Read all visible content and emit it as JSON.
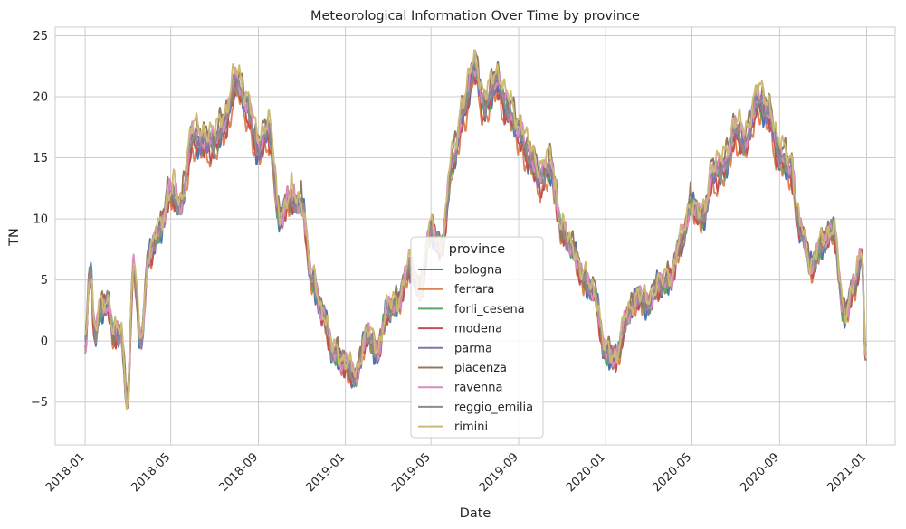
{
  "chart_data": {
    "type": "line",
    "title": "Meteorological Information Over Time by province",
    "xlabel": "Date",
    "ylabel": "TN",
    "x_range": [
      "2017-11-20",
      "2021-02-10"
    ],
    "ylim": [
      -8.5,
      25.7
    ],
    "y_ticks": [
      -5,
      0,
      5,
      10,
      15,
      20,
      25
    ],
    "y_tick_labels": [
      "−5",
      "0",
      "5",
      "10",
      "15",
      "20",
      "25"
    ],
    "x_ticks": [
      "2018-01-01",
      "2018-05-01",
      "2018-09-01",
      "2019-01-01",
      "2019-05-01",
      "2019-09-01",
      "2020-01-01",
      "2020-05-01",
      "2020-09-01",
      "2021-01-01"
    ],
    "x_tick_labels": [
      "2018-01",
      "2018-05",
      "2018-09",
      "2019-01",
      "2019-05",
      "2019-09",
      "2020-01",
      "2020-05",
      "2020-09",
      "2021-01"
    ],
    "grid": true,
    "legend": {
      "title": "province",
      "placement": "center"
    },
    "base_profile": [
      [
        "2018-01-01",
        -0.5
      ],
      [
        "2018-01-08",
        5.5
      ],
      [
        "2018-01-15",
        0.5
      ],
      [
        "2018-01-22",
        2.5
      ],
      [
        "2018-02-01",
        3.0
      ],
      [
        "2018-02-10",
        0.5
      ],
      [
        "2018-02-20",
        0.5
      ],
      [
        "2018-03-01",
        -5.0
      ],
      [
        "2018-03-10",
        6.0
      ],
      [
        "2018-03-20",
        0.0
      ],
      [
        "2018-04-01",
        7.0
      ],
      [
        "2018-04-15",
        9.0
      ],
      [
        "2018-05-01",
        12.0
      ],
      [
        "2018-05-15",
        11.0
      ],
      [
        "2018-06-01",
        16.5
      ],
      [
        "2018-06-15",
        16.0
      ],
      [
        "2018-07-01",
        16.0
      ],
      [
        "2018-07-15",
        17.5
      ],
      [
        "2018-08-01",
        21.0
      ],
      [
        "2018-08-15",
        19.0
      ],
      [
        "2018-09-01",
        15.5
      ],
      [
        "2018-09-15",
        17.0
      ],
      [
        "2018-10-01",
        10.0
      ],
      [
        "2018-10-15",
        11.5
      ],
      [
        "2018-11-01",
        11.0
      ],
      [
        "2018-11-15",
        5.0
      ],
      [
        "2018-12-01",
        2.0
      ],
      [
        "2018-12-15",
        -1.0
      ],
      [
        "2019-01-01",
        -2.0
      ],
      [
        "2019-01-15",
        -3.0
      ],
      [
        "2019-02-01",
        0.5
      ],
      [
        "2019-02-15",
        -1.0
      ],
      [
        "2019-03-01",
        2.5
      ],
      [
        "2019-03-15",
        3.0
      ],
      [
        "2019-04-01",
        6.0
      ],
      [
        "2019-04-15",
        4.0
      ],
      [
        "2019-05-01",
        9.0
      ],
      [
        "2019-05-15",
        7.5
      ],
      [
        "2019-06-01",
        14.5
      ],
      [
        "2019-06-15",
        18.5
      ],
      [
        "2019-07-01",
        22.0
      ],
      [
        "2019-07-15",
        19.0
      ],
      [
        "2019-08-01",
        21.0
      ],
      [
        "2019-08-15",
        19.0
      ],
      [
        "2019-09-01",
        17.0
      ],
      [
        "2019-09-15",
        15.0
      ],
      [
        "2019-10-01",
        13.0
      ],
      [
        "2019-10-15",
        14.0
      ],
      [
        "2019-11-01",
        9.0
      ],
      [
        "2019-11-15",
        7.5
      ],
      [
        "2019-12-01",
        5.0
      ],
      [
        "2019-12-15",
        4.0
      ],
      [
        "2020-01-01",
        -1.0
      ],
      [
        "2020-01-15",
        -1.5
      ],
      [
        "2020-02-01",
        2.0
      ],
      [
        "2020-02-15",
        3.5
      ],
      [
        "2020-03-01",
        3.0
      ],
      [
        "2020-03-15",
        4.5
      ],
      [
        "2020-04-01",
        5.0
      ],
      [
        "2020-04-15",
        8.0
      ],
      [
        "2020-05-01",
        11.0
      ],
      [
        "2020-05-15",
        10.0
      ],
      [
        "2020-06-01",
        13.5
      ],
      [
        "2020-06-15",
        14.0
      ],
      [
        "2020-07-01",
        17.0
      ],
      [
        "2020-07-15",
        16.0
      ],
      [
        "2020-08-01",
        19.5
      ],
      [
        "2020-08-15",
        18.5
      ],
      [
        "2020-09-01",
        15.0
      ],
      [
        "2020-09-15",
        14.0
      ],
      [
        "2020-10-01",
        9.0
      ],
      [
        "2020-10-15",
        6.0
      ],
      [
        "2020-11-01",
        8.0
      ],
      [
        "2020-11-15",
        9.0
      ],
      [
        "2020-12-01",
        2.0
      ],
      [
        "2020-12-15",
        4.5
      ],
      [
        "2020-12-25",
        7.0
      ],
      [
        "2020-12-31",
        -1.5
      ]
    ],
    "series": [
      {
        "name": "bologna",
        "color": "#4c72b0",
        "offset": 0.0,
        "noise_amp": 1.2,
        "seed": 11
      },
      {
        "name": "ferrara",
        "color": "#dd8452",
        "offset": -0.8,
        "noise_amp": 1.0,
        "seed": 23
      },
      {
        "name": "forli_cesena",
        "color": "#55a868",
        "offset": 0.1,
        "noise_amp": 0.9,
        "seed": 37
      },
      {
        "name": "modena",
        "color": "#c44e52",
        "offset": -0.3,
        "noise_amp": 1.0,
        "seed": 41
      },
      {
        "name": "parma",
        "color": "#8172b3",
        "offset": 0.2,
        "noise_amp": 0.9,
        "seed": 53
      },
      {
        "name": "piacenza",
        "color": "#937860",
        "offset": 1.0,
        "noise_amp": 1.1,
        "seed": 67
      },
      {
        "name": "ravenna",
        "color": "#da8bc3",
        "offset": 0.6,
        "noise_amp": 0.9,
        "seed": 71
      },
      {
        "name": "reggio_emilia",
        "color": "#8c8c8c",
        "offset": 0.3,
        "noise_amp": 0.9,
        "seed": 83
      },
      {
        "name": "rimini",
        "color": "#ccb974",
        "offset": 1.2,
        "noise_amp": 1.0,
        "seed": 97
      }
    ]
  }
}
